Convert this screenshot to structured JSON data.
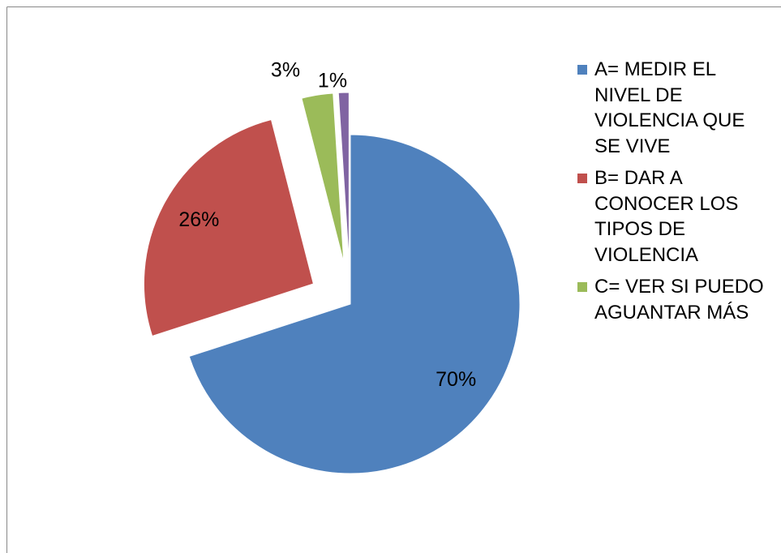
{
  "chart_data": {
    "type": "pie",
    "categories": [
      "A= MEDIR EL NIVEL DE VIOLENCIA QUE SE VIVE",
      "B= DAR A CONOCER LOS TIPOS DE VIOLENCIA",
      "C= VER SI PUEDO AGUANTAR MÁS",
      null
    ],
    "values": [
      70,
      26,
      3,
      1
    ],
    "value_labels": [
      "70%",
      "26%",
      "3%",
      "1%"
    ],
    "colors": [
      "#4f81bd",
      "#c0504d",
      "#9bbb59",
      "#8064a2"
    ],
    "legend": "right"
  }
}
